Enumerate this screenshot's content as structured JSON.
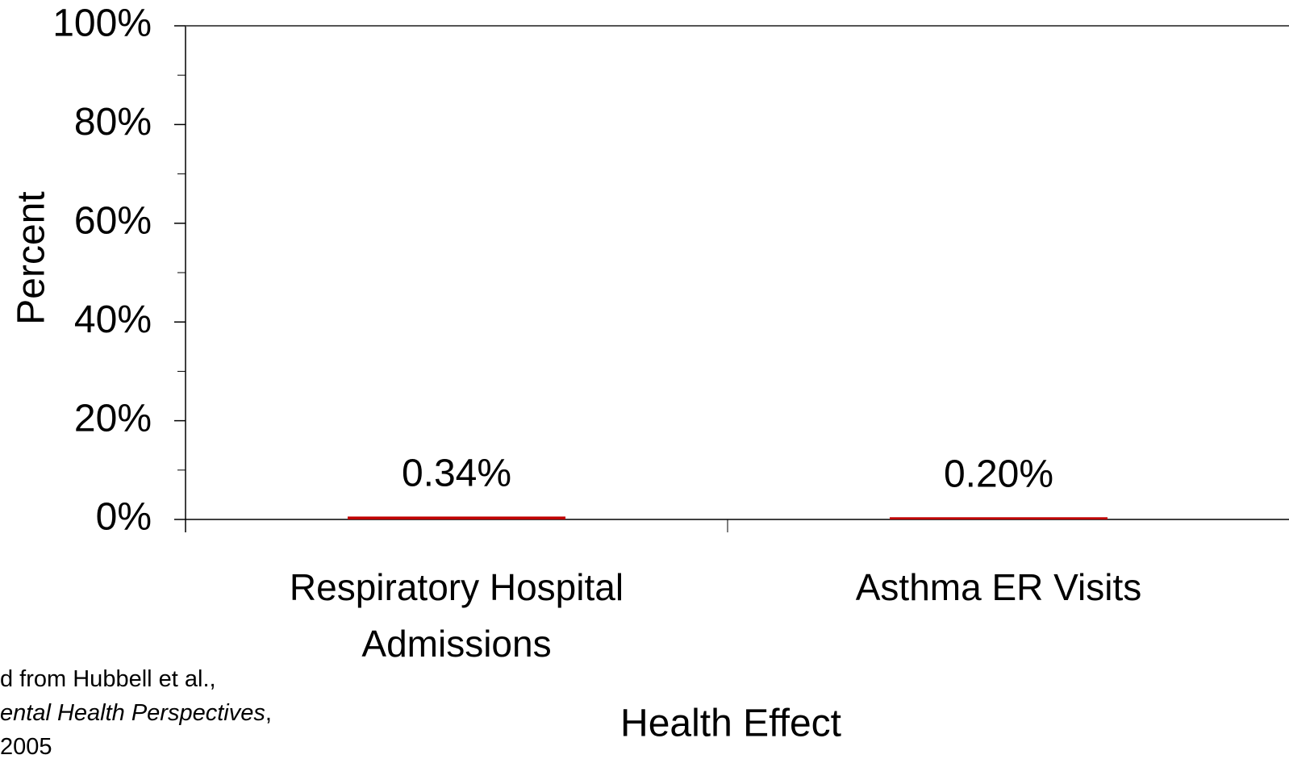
{
  "chart_data": {
    "type": "bar",
    "ylabel": "Percent",
    "xlabel": "Health Effect",
    "categories": [
      "Respiratory Hospital Admissions",
      "Asthma ER Visits"
    ],
    "values": [
      0.34,
      0.2
    ],
    "value_labels": [
      "0.34%",
      "0.20%"
    ],
    "color": "#c00000",
    "ylim": [
      0,
      100
    ],
    "yticks": [
      {
        "value": 0,
        "label": "0%"
      },
      {
        "value": 20,
        "label": "20%"
      },
      {
        "value": 40,
        "label": "40%"
      },
      {
        "value": 60,
        "label": "60%"
      },
      {
        "value": 80,
        "label": "80%"
      },
      {
        "value": 100,
        "label": "100%"
      }
    ],
    "yminor_ticks": [
      10,
      30,
      50,
      70,
      90
    ],
    "grid": false,
    "footnote": [
      [
        "d from Hubbell et al.,"
      ],
      [
        "ental Health Perspectives",
        ","
      ],
      [
        "2005"
      ]
    ]
  }
}
